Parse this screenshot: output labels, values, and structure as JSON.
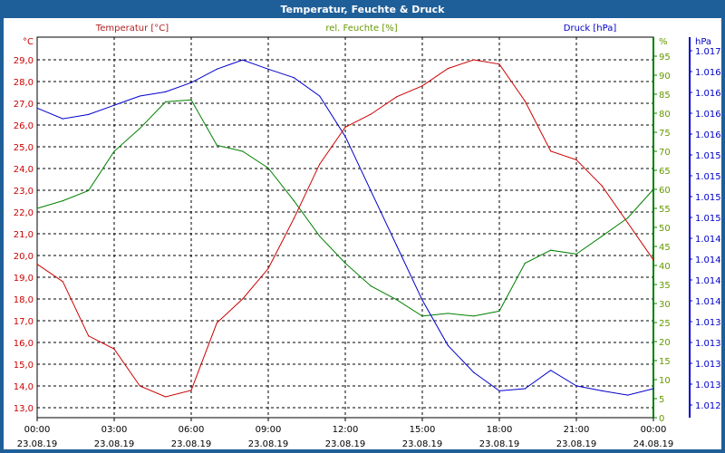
{
  "window": {
    "title": "Temperatur, Feuchte & Druck"
  },
  "chart_data": {
    "type": "line",
    "title": "Temperatur, Feuchte & Druck",
    "x_hours": [
      0,
      1,
      2,
      3,
      4,
      5,
      6,
      7,
      8,
      9,
      10,
      11,
      12,
      13,
      14,
      15,
      16,
      17,
      18,
      19,
      20,
      21,
      22,
      23,
      24
    ],
    "x_ticks": [
      {
        "time": "00:00",
        "date": "23.08.19"
      },
      {
        "time": "03:00",
        "date": "23.08.19"
      },
      {
        "time": "06:00",
        "date": "23.08.19"
      },
      {
        "time": "09:00",
        "date": "23.08.19"
      },
      {
        "time": "12:00",
        "date": "23.08.19"
      },
      {
        "time": "15:00",
        "date": "23.08.19"
      },
      {
        "time": "18:00",
        "date": "23.08.19"
      },
      {
        "time": "21:00",
        "date": "23.08.19"
      },
      {
        "time": "00:00",
        "date": "24.08.19"
      }
    ],
    "series": [
      {
        "name": "Temperatur [°C]",
        "unit": "°C",
        "color": "#cc0000",
        "legend_color": "#b22222",
        "axis": "left",
        "ylim": [
          12.55,
          30.05
        ],
        "ticks": [
          "29,0",
          "28,0",
          "27,0",
          "26,0",
          "25,0",
          "24,0",
          "23,0",
          "22,0",
          "21,0",
          "20,0",
          "19,0",
          "18,0",
          "17,0",
          "16,0",
          "15,0",
          "14,0",
          "13,0"
        ],
        "values": [
          19.6,
          18.8,
          16.3,
          15.7,
          14.0,
          13.5,
          13.8,
          16.9,
          18.0,
          19.4,
          21.7,
          24.2,
          25.9,
          26.5,
          27.3,
          27.8,
          28.6,
          29.0,
          28.8,
          27.1,
          24.8,
          24.4,
          23.2,
          21.5,
          19.8
        ]
      },
      {
        "name": "rel. Feuchte [%]",
        "unit": "%",
        "color": "#008000",
        "legend_color": "#669900",
        "axis": "right1",
        "ylim": [
          0,
          100
        ],
        "ticks": [
          "95",
          "90",
          "85",
          "80",
          "75",
          "70",
          "65",
          "60",
          "55",
          "50",
          "45",
          "40",
          "35",
          "30",
          "25",
          "20",
          "15",
          "10",
          "5",
          "0"
        ],
        "values": [
          55,
          57,
          59.7,
          70,
          76,
          83,
          83.5,
          71.6,
          70,
          65.6,
          57,
          47.7,
          40.6,
          34.6,
          31,
          26.7,
          27.4,
          26.7,
          28,
          40.6,
          44,
          43,
          47.7,
          52.5,
          60
        ]
      },
      {
        "name": "Druck [hPa]",
        "unit": "hPa",
        "color": "#0000cc",
        "legend_color": "#0000cc",
        "axis": "right2",
        "ylim": [
          1012.0,
          1017.0
        ],
        "ticks": [
          "1.017",
          "1.016",
          "1.016",
          "1.016",
          "1.016",
          "1.015",
          "1.015",
          "1.015",
          "1.015",
          "1.014",
          "1.014",
          "1.014",
          "1.014",
          "1.013",
          "1.013",
          "1.013",
          "1.013",
          "1.012"
        ],
        "values": [
          1016.19,
          1016.04,
          1016.1,
          1016.23,
          1016.36,
          1016.42,
          1016.55,
          1016.74,
          1016.87,
          1016.74,
          1016.62,
          1016.36,
          1015.79,
          1015.02,
          1014.25,
          1013.48,
          1012.84,
          1012.46,
          1012.2,
          1012.23,
          1012.49,
          1012.27,
          1012.2,
          1012.14,
          1012.23
        ]
      }
    ]
  }
}
